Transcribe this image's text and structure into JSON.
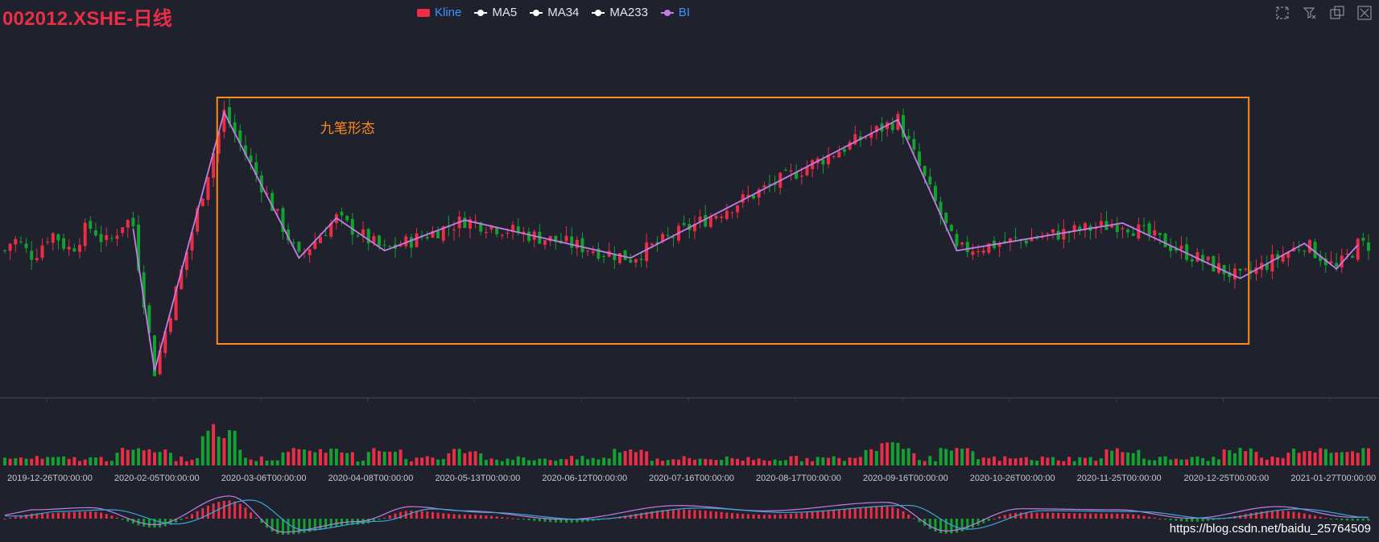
{
  "title": "002012.XSHE-日线",
  "legend": [
    {
      "label": "Kline",
      "color": "#ec2d46",
      "kind": "rect",
      "text_color": "#3f92ff"
    },
    {
      "label": "MA5",
      "color": "#ffffff",
      "kind": "line",
      "text_color": "#e6e6e6"
    },
    {
      "label": "MA34",
      "color": "#ffffff",
      "kind": "line",
      "text_color": "#e6e6e6"
    },
    {
      "label": "MA233",
      "color": "#ffffff",
      "kind": "line",
      "text_color": "#e6e6e6"
    },
    {
      "label": "BI",
      "color": "#c47ce6",
      "kind": "line",
      "text_color": "#3f92ff"
    }
  ],
  "toolbox": [
    "zoom-icon",
    "zoom-reset-icon",
    "restore-icon",
    "save-icon"
  ],
  "watermark": "https://blog.csdn.net/baidu_25764509",
  "chart_data": {
    "type": "candlestick",
    "up_color": "#ec2d46",
    "down_color": "#13a131",
    "bi_color": "#c47ce6",
    "annotation": {
      "text": "九笔形态",
      "color": "#ff8a1e",
      "start_index": 40,
      "end_index": 232
    },
    "x_ticks": [
      {
        "index": 0,
        "label": "2019-12-26T00:00:00"
      },
      {
        "index": 20,
        "label": "2020-02-05T00:00:00"
      },
      {
        "index": 40,
        "label": "2020-03-06T00:00:00"
      },
      {
        "index": 60,
        "label": "2020-04-08T00:00:00"
      },
      {
        "index": 80,
        "label": "2020-05-13T00:00:00"
      },
      {
        "index": 100,
        "label": "2020-06-12T00:00:00"
      },
      {
        "index": 120,
        "label": "2020-07-16T00:00:00"
      },
      {
        "index": 140,
        "label": "2020-08-17T00:00:00"
      },
      {
        "index": 160,
        "label": "2020-09-16T00:00:00"
      },
      {
        "index": 180,
        "label": "2020-10-26T00:00:00"
      },
      {
        "index": 200,
        "label": "2020-11-25T00:00:00"
      },
      {
        "index": 220,
        "label": "2020-12-25T00:00:00"
      },
      {
        "index": 240,
        "label": "2021-01-27T00:00:00"
      }
    ],
    "bi_points": [
      {
        "index": 24,
        "price": 5.2
      },
      {
        "index": 28,
        "price": 3.25
      },
      {
        "index": 41,
        "price": 6.8
      },
      {
        "index": 55,
        "price": 4.8
      },
      {
        "index": 62,
        "price": 5.35
      },
      {
        "index": 71,
        "price": 4.9
      },
      {
        "index": 86,
        "price": 5.32
      },
      {
        "index": 117,
        "price": 4.8
      },
      {
        "index": 167,
        "price": 6.7
      },
      {
        "index": 178,
        "price": 4.9
      },
      {
        "index": 209,
        "price": 5.28
      },
      {
        "index": 231,
        "price": 4.52
      },
      {
        "index": 243,
        "price": 5.0
      },
      {
        "index": 249,
        "price": 4.65
      },
      {
        "index": 253,
        "price": 4.98
      }
    ],
    "volume_scale": [
      3,
      4,
      2,
      5,
      6,
      3,
      4,
      2,
      3,
      5
    ],
    "macd": {
      "histogram_peaks": [
        {
          "index": 5,
          "value": 0.25
        },
        {
          "index": 16,
          "value": 0.35
        },
        {
          "index": 28,
          "value": -0.45
        },
        {
          "index": 42,
          "value": 0.9
        },
        {
          "index": 52,
          "value": -0.8
        },
        {
          "index": 66,
          "value": -0.3
        },
        {
          "index": 76,
          "value": 0.4
        },
        {
          "index": 86,
          "value": 0.2
        },
        {
          "index": 105,
          "value": -0.2
        },
        {
          "index": 126,
          "value": 0.45
        },
        {
          "index": 142,
          "value": 0.2
        },
        {
          "index": 165,
          "value": 0.6
        },
        {
          "index": 176,
          "value": -0.75
        },
        {
          "index": 190,
          "value": 0.3
        },
        {
          "index": 208,
          "value": 0.25
        },
        {
          "index": 222,
          "value": -0.15
        },
        {
          "index": 238,
          "value": 0.4
        },
        {
          "index": 252,
          "value": -0.1
        }
      ]
    }
  }
}
